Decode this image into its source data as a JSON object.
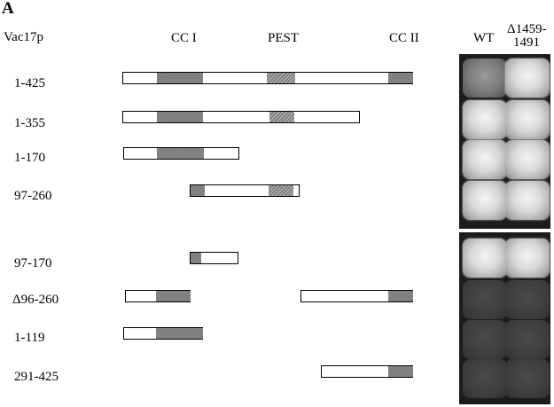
{
  "panel_letter": "A",
  "headers": {
    "construct": "Vac17p",
    "cc1": "CC I",
    "pest": "PEST",
    "cc2": "CC II",
    "wt": "WT",
    "mutant_line1": "Δ1459-",
    "mutant_line2": "1491"
  },
  "rows": [
    {
      "label": "1-425",
      "wt_growth": "medium",
      "mutant_growth": "strong"
    },
    {
      "label": "1-355",
      "wt_growth": "strong",
      "mutant_growth": "strong"
    },
    {
      "label": "1-170",
      "wt_growth": "strong",
      "mutant_growth": "strong"
    },
    {
      "label": "97-260",
      "wt_growth": "strong",
      "mutant_growth": "strong"
    },
    {
      "label": "97-170",
      "wt_growth": "strong",
      "mutant_growth": "strong"
    },
    {
      "label": "Δ96-260",
      "wt_growth": "none",
      "mutant_growth": "none"
    },
    {
      "label": "1-119",
      "wt_growth": "none",
      "mutant_growth": "none"
    },
    {
      "label": "291-425",
      "wt_growth": "none",
      "mutant_growth": "none"
    }
  ]
}
